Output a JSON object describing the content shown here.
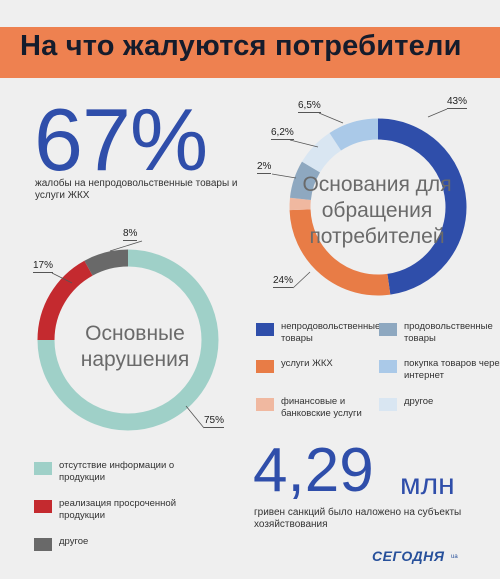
{
  "title": "На что жалуются потребители",
  "stat1": {
    "value": "67%",
    "caption": "жалобы на непродовольственные товары и услуги ЖКХ"
  },
  "stat2": {
    "value": "4,29",
    "unit": "млн",
    "caption": "гривен санкций было наложено на субъекты хозяйствования"
  },
  "brand": {
    "name": "СЕГОДНЯ",
    "suffix": "ua"
  },
  "chart_data": [
    {
      "type": "pie",
      "variant": "donut",
      "title": "Основания для обращения потребителей",
      "categories": [
        "непродовольственные товары",
        "услуги ЖКХ",
        "финансовые и банковские услуги",
        "продовольственные товары",
        "другое",
        "покупка товаров через интернет"
      ],
      "values": [
        43,
        24,
        2,
        6.2,
        6.5,
        8.3
      ],
      "labels": [
        "43%",
        "24%",
        "2%",
        "6,2%",
        "6,5%",
        ""
      ],
      "colors": [
        "#2f4eaa",
        "#e87c46",
        "#f0b8a0",
        "#8ea8c0",
        "#d9e6f2",
        "#aac9e8"
      ],
      "legend": [
        {
          "label": "непродовольственные товары",
          "color": "#2f4eaa"
        },
        {
          "label": "продовольственные товары",
          "color": "#8ea8c0"
        },
        {
          "label": "услуги ЖКХ",
          "color": "#e87c46"
        },
        {
          "label": "покупка товаров через интернет",
          "color": "#aac9e8"
        },
        {
          "label": "финансовые и банковские услуги",
          "color": "#f0b8a0"
        },
        {
          "label": "другое",
          "color": "#d9e6f2"
        }
      ],
      "legend_position": "bottom"
    },
    {
      "type": "pie",
      "variant": "donut",
      "title": "Основные нарушения",
      "categories": [
        "отсутствие информации о продукции",
        "реализация просроченной продукции",
        "другое"
      ],
      "values": [
        75,
        17,
        8
      ],
      "labels": [
        "75%",
        "17%",
        "8%"
      ],
      "colors": [
        "#9fd0c8",
        "#c42a2f",
        "#696969"
      ],
      "legend": [
        {
          "label": "отсутствие информации о продукции",
          "color": "#9fd0c8"
        },
        {
          "label": "реализация просроченной продукции",
          "color": "#c42a2f"
        },
        {
          "label": "другое",
          "color": "#696969"
        }
      ],
      "legend_position": "bottom"
    }
  ]
}
